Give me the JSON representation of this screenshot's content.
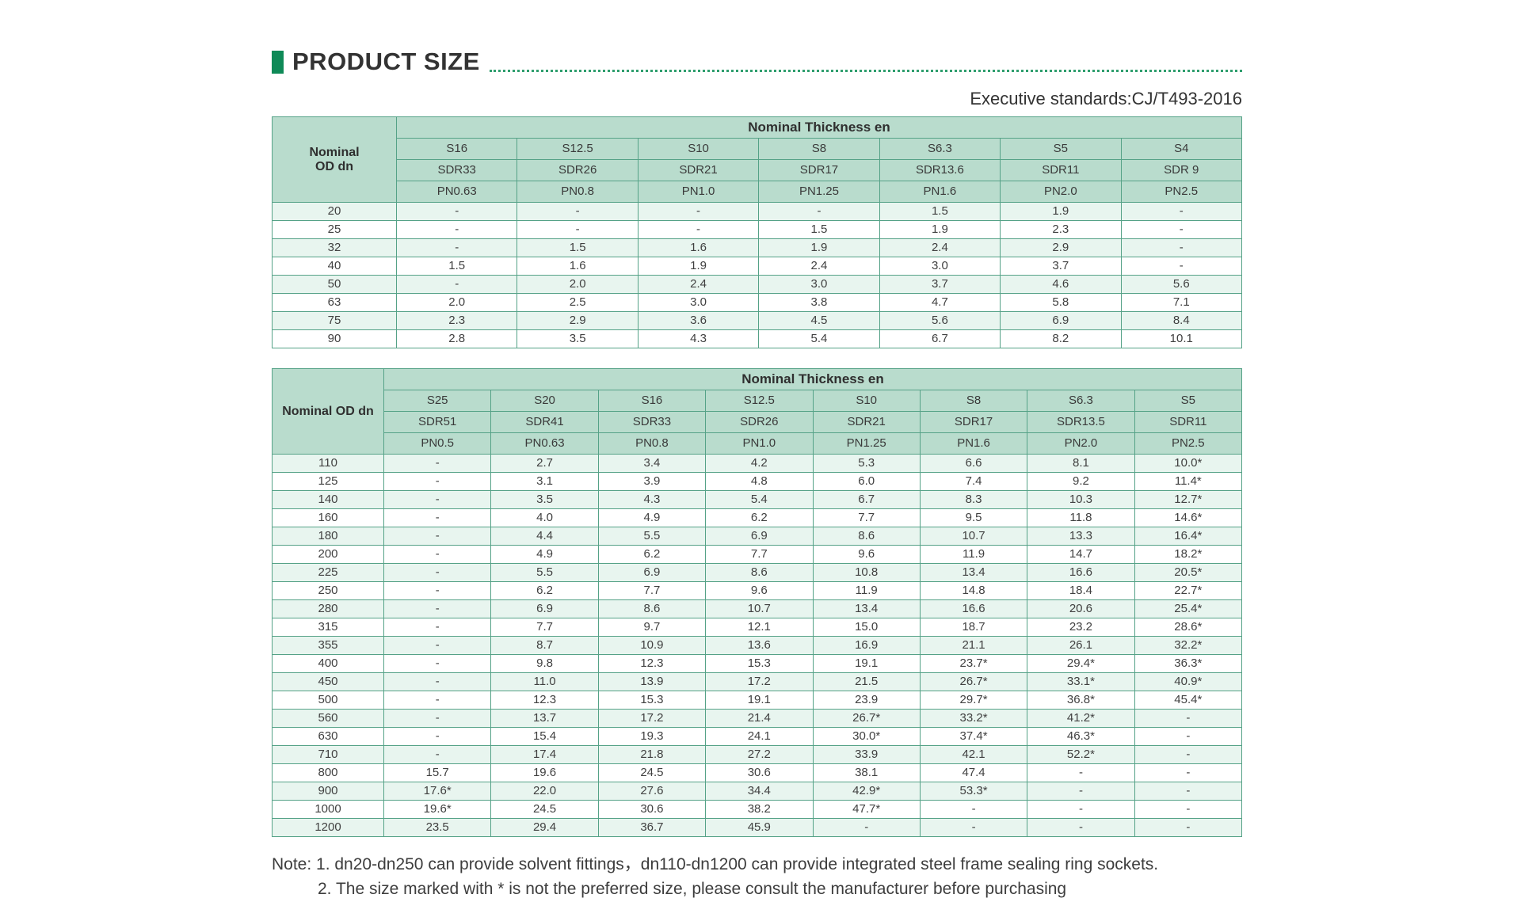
{
  "page": {
    "title": "PRODUCT SIZE",
    "standards": "Executive standards:CJ/T493-2016",
    "accent_color": "#0e8a57",
    "header_bg_color": "#b9dccd",
    "stripe_color": "#e8f5ef",
    "border_color": "#55a287"
  },
  "table1": {
    "corner_label": "Nominal\nOD dn",
    "header_title": "Nominal Thickness en",
    "s_row": [
      "S16",
      "S12.5",
      "S10",
      "S8",
      "S6.3",
      "S5",
      "S4"
    ],
    "sdr_row": [
      "SDR33",
      "SDR26",
      "SDR21",
      "SDR17",
      "SDR13.6",
      "SDR11",
      "SDR 9"
    ],
    "pn_row": [
      "PN0.63",
      "PN0.8",
      "PN1.0",
      "PN1.25",
      "PN1.6",
      "PN2.0",
      "PN2.5"
    ],
    "rows": [
      {
        "dn": "20",
        "values": [
          "-",
          "-",
          "-",
          "-",
          "1.5",
          "1.9",
          "-"
        ]
      },
      {
        "dn": "25",
        "values": [
          "-",
          "-",
          "-",
          "1.5",
          "1.9",
          "2.3",
          "-"
        ]
      },
      {
        "dn": "32",
        "values": [
          "-",
          "1.5",
          "1.6",
          "1.9",
          "2.4",
          "2.9",
          "-"
        ]
      },
      {
        "dn": "40",
        "values": [
          "1.5",
          "1.6",
          "1.9",
          "2.4",
          "3.0",
          "3.7",
          "-"
        ]
      },
      {
        "dn": "50",
        "values": [
          "-",
          "2.0",
          "2.4",
          "3.0",
          "3.7",
          "4.6",
          "5.6"
        ]
      },
      {
        "dn": "63",
        "values": [
          "2.0",
          "2.5",
          "3.0",
          "3.8",
          "4.7",
          "5.8",
          "7.1"
        ]
      },
      {
        "dn": "75",
        "values": [
          "2.3",
          "2.9",
          "3.6",
          "4.5",
          "5.6",
          "6.9",
          "8.4"
        ]
      },
      {
        "dn": "90",
        "values": [
          "2.8",
          "3.5",
          "4.3",
          "5.4",
          "6.7",
          "8.2",
          "10.1"
        ]
      }
    ]
  },
  "table2": {
    "corner_label": "Nominal OD dn",
    "header_title": "Nominal Thickness en",
    "s_row": [
      "S25",
      "S20",
      "S16",
      "S12.5",
      "S10",
      "S8",
      "S6.3",
      "S5"
    ],
    "sdr_row": [
      "SDR51",
      "SDR41",
      "SDR33",
      "SDR26",
      "SDR21",
      "SDR17",
      "SDR13.5",
      "SDR11"
    ],
    "pn_row": [
      "PN0.5",
      "PN0.63",
      "PN0.8",
      "PN1.0",
      "PN1.25",
      "PN1.6",
      "PN2.0",
      "PN2.5"
    ],
    "rows": [
      {
        "dn": "110",
        "values": [
          "-",
          "2.7",
          "3.4",
          "4.2",
          "5.3",
          "6.6",
          "8.1",
          "10.0*"
        ]
      },
      {
        "dn": "125",
        "values": [
          "-",
          "3.1",
          "3.9",
          "4.8",
          "6.0",
          "7.4",
          "9.2",
          "11.4*"
        ]
      },
      {
        "dn": "140",
        "values": [
          "-",
          "3.5",
          "4.3",
          "5.4",
          "6.7",
          "8.3",
          "10.3",
          "12.7*"
        ]
      },
      {
        "dn": "160",
        "values": [
          "-",
          "4.0",
          "4.9",
          "6.2",
          "7.7",
          "9.5",
          "11.8",
          "14.6*"
        ]
      },
      {
        "dn": "180",
        "values": [
          "-",
          "4.4",
          "5.5",
          "6.9",
          "8.6",
          "10.7",
          "13.3",
          "16.4*"
        ]
      },
      {
        "dn": "200",
        "values": [
          "-",
          "4.9",
          "6.2",
          "7.7",
          "9.6",
          "11.9",
          "14.7",
          "18.2*"
        ]
      },
      {
        "dn": "225",
        "values": [
          "-",
          "5.5",
          "6.9",
          "8.6",
          "10.8",
          "13.4",
          "16.6",
          "20.5*"
        ]
      },
      {
        "dn": "250",
        "values": [
          "-",
          "6.2",
          "7.7",
          "9.6",
          "11.9",
          "14.8",
          "18.4",
          "22.7*"
        ]
      },
      {
        "dn": "280",
        "values": [
          "-",
          "6.9",
          "8.6",
          "10.7",
          "13.4",
          "16.6",
          "20.6",
          "25.4*"
        ]
      },
      {
        "dn": "315",
        "values": [
          "-",
          "7.7",
          "9.7",
          "12.1",
          "15.0",
          "18.7",
          "23.2",
          "28.6*"
        ]
      },
      {
        "dn": "355",
        "values": [
          "-",
          "8.7",
          "10.9",
          "13.6",
          "16.9",
          "21.1",
          "26.1",
          "32.2*"
        ]
      },
      {
        "dn": "400",
        "values": [
          "-",
          "9.8",
          "12.3",
          "15.3",
          "19.1",
          "23.7*",
          "29.4*",
          "36.3*"
        ]
      },
      {
        "dn": "450",
        "values": [
          "-",
          "11.0",
          "13.9",
          "17.2",
          "21.5",
          "26.7*",
          "33.1*",
          "40.9*"
        ]
      },
      {
        "dn": "500",
        "values": [
          "-",
          "12.3",
          "15.3",
          "19.1",
          "23.9",
          "29.7*",
          "36.8*",
          "45.4*"
        ]
      },
      {
        "dn": "560",
        "values": [
          "-",
          "13.7",
          "17.2",
          "21.4",
          "26.7*",
          "33.2*",
          "41.2*",
          "-"
        ]
      },
      {
        "dn": "630",
        "values": [
          "-",
          "15.4",
          "19.3",
          "24.1",
          "30.0*",
          "37.4*",
          "46.3*",
          "-"
        ]
      },
      {
        "dn": "710",
        "values": [
          "-",
          "17.4",
          "21.8",
          "27.2",
          "33.9",
          "42.1",
          "52.2*",
          "-"
        ]
      },
      {
        "dn": "800",
        "values": [
          "15.7",
          "19.6",
          "24.5",
          "30.6",
          "38.1",
          "47.4",
          "-",
          "-"
        ]
      },
      {
        "dn": "900",
        "values": [
          "17.6*",
          "22.0",
          "27.6",
          "34.4",
          "42.9*",
          "53.3*",
          "-",
          "-"
        ]
      },
      {
        "dn": "1000",
        "values": [
          "19.6*",
          "24.5",
          "30.6",
          "38.2",
          "47.7*",
          "-",
          "-",
          "-"
        ]
      },
      {
        "dn": "1200",
        "values": [
          "23.5",
          "29.4",
          "36.7",
          "45.9",
          "-",
          "-",
          "-",
          "-"
        ]
      }
    ]
  },
  "notes": {
    "line1": "Note: 1. dn20-dn250 can provide solvent fittings，dn110-dn1200 can provide integrated steel frame sealing ring sockets.",
    "line2": "2. The size marked with * is not the preferred size, please consult the manufacturer before purchasing"
  }
}
